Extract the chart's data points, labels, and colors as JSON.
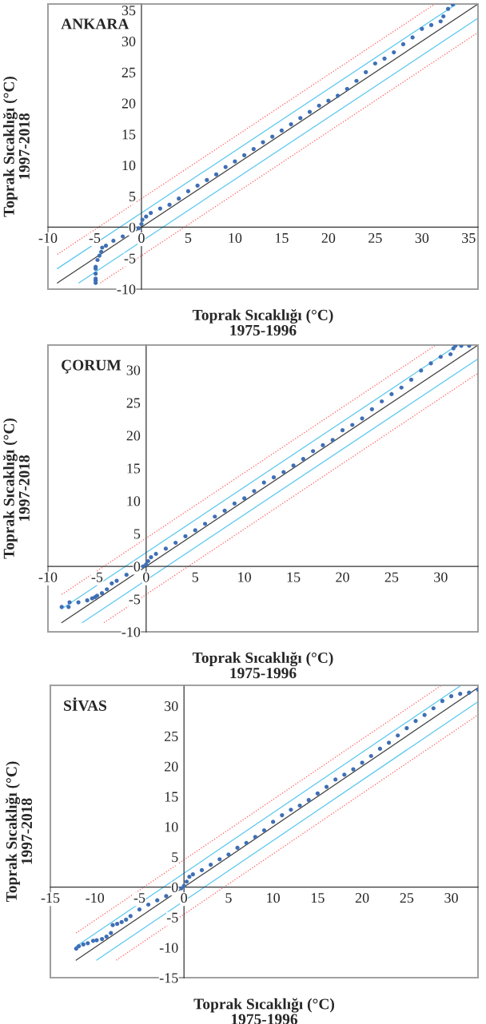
{
  "chart_data": [
    {
      "type": "scatter",
      "title": "ANKARA",
      "xlabel": "Toprak Sıcaklığı (°C)\n1975-1996",
      "ylabel": "Toprak Sıcaklığı (°C)\n1997-2018",
      "xlim": [
        -10,
        36
      ],
      "ylim": [
        -10,
        36
      ],
      "xticks": [
        -10,
        -5,
        0,
        5,
        10,
        15,
        20,
        25,
        30,
        35
      ],
      "yticks": [
        -10,
        -5,
        0,
        5,
        10,
        15,
        20,
        25,
        30,
        35
      ],
      "grid": false,
      "legend": false,
      "series": [
        {
          "color": "#3f6fb5",
          "marker": "circle",
          "x": [
            -4.9,
            -4.9,
            -4.9,
            -4.9,
            -4.9,
            -4.9,
            -4.7,
            -4.5,
            -4.3,
            -4.2,
            -3.8,
            -3,
            -2,
            -0.3,
            0,
            0.1,
            0.5,
            1,
            2,
            3,
            4,
            5,
            6,
            7,
            8,
            9,
            10,
            11,
            12,
            13,
            14,
            15,
            16,
            17,
            18,
            19,
            20,
            21,
            22,
            23,
            24,
            25,
            26,
            27,
            28,
            29,
            30,
            31,
            32,
            32.3,
            32.8,
            33.3
          ],
          "values": [
            -9.0,
            -8.6,
            -8.3,
            -7.5,
            -6.7,
            -6.4,
            -5.3,
            -4.6,
            -4.0,
            -3.3,
            -3.0,
            -2.2,
            -1.5,
            -0.2,
            0.5,
            1.2,
            1.7,
            2.3,
            3.0,
            3.6,
            4.6,
            5.8,
            6.7,
            7.6,
            8.5,
            9.7,
            10.6,
            11.6,
            12.6,
            13.7,
            14.6,
            15.6,
            16.6,
            17.6,
            18.6,
            19.6,
            20.4,
            21.2,
            22.3,
            23.6,
            25.0,
            26.4,
            27.2,
            28.2,
            29.5,
            30.6,
            32.0,
            32.6,
            33.2,
            34.0,
            35.2,
            35.9
          ]
        },
        {
          "type": "line",
          "color": "#404040",
          "line_style": "solid",
          "x": [
            -9,
            36
          ],
          "values": [
            -9,
            36
          ]
        },
        {
          "type": "line",
          "color": "#5ac8f0",
          "line_style": "solid",
          "x": [
            -9,
            33.7
          ],
          "values": [
            -6.7,
            36
          ]
        },
        {
          "type": "line",
          "color": "#5ac8f0",
          "line_style": "solid",
          "x": [
            -6.7,
            36
          ],
          "values": [
            -9,
            33.7
          ]
        },
        {
          "type": "line",
          "color": "#ff5a5a",
          "line_style": "dotted",
          "x": [
            -9,
            31.4
          ],
          "values": [
            -4.4,
            36
          ]
        },
        {
          "type": "line",
          "color": "#ff5a5a",
          "line_style": "dotted",
          "x": [
            -4.4,
            36
          ],
          "values": [
            -9,
            31.4
          ]
        }
      ]
    },
    {
      "type": "scatter",
      "title": "ÇORUM",
      "xlabel": "Toprak Sıcaklığı (°C)\n1975-1996",
      "ylabel": "Toprak Sıcaklığı (°C)\n1997-2018",
      "xlim": [
        -10,
        33.8
      ],
      "ylim": [
        -10,
        33.8
      ],
      "xticks": [
        -10,
        -5,
        0,
        5,
        10,
        15,
        20,
        25,
        30
      ],
      "yticks": [
        -10,
        -5,
        0,
        5,
        10,
        15,
        20,
        25,
        30
      ],
      "grid": false,
      "legend": false,
      "series": [
        {
          "color": "#3f6fb5",
          "marker": "circle",
          "x": [
            -8.6,
            -7.9,
            -7.8,
            -6.9,
            -6,
            -5.5,
            -5.2,
            -5,
            -4.5,
            -4,
            -3.5,
            -3,
            -2,
            -0.3,
            0,
            0.2,
            0.5,
            1,
            2,
            3,
            4,
            5,
            6,
            7,
            8,
            9,
            10,
            11,
            12,
            13,
            14,
            15,
            16,
            17,
            18,
            19,
            20,
            21,
            22,
            23,
            24,
            25,
            26,
            27,
            28,
            29,
            30,
            31,
            31.3,
            31.5,
            32.1,
            32.9
          ],
          "values": [
            -6.2,
            -6.2,
            -5.5,
            -5.5,
            -5.2,
            -4.9,
            -4.7,
            -4.5,
            -4.1,
            -3.5,
            -2.6,
            -2.2,
            -1.3,
            0,
            0.3,
            0.8,
            1.4,
            1.9,
            2.7,
            3.6,
            4.6,
            5.5,
            6.5,
            7.6,
            8.5,
            9.6,
            10.4,
            11.5,
            12.8,
            13.6,
            14.4,
            15.4,
            16.4,
            17.6,
            18.5,
            19.3,
            20.8,
            21.6,
            22.6,
            24.0,
            25.2,
            26.3,
            27.3,
            28.5,
            29.9,
            31.0,
            32.0,
            32.4,
            33.3,
            33.7,
            33.7,
            33.7
          ]
        },
        {
          "type": "line",
          "color": "#404040",
          "line_style": "solid",
          "x": [
            -8.6,
            33.8
          ],
          "values": [
            -8.6,
            33.8
          ]
        },
        {
          "type": "line",
          "color": "#5ac8f0",
          "line_style": "solid",
          "x": [
            -8.6,
            31.7
          ],
          "values": [
            -6.5,
            33.8
          ]
        },
        {
          "type": "line",
          "color": "#5ac8f0",
          "line_style": "solid",
          "x": [
            -6.5,
            33.8
          ],
          "values": [
            -8.6,
            31.7
          ]
        },
        {
          "type": "line",
          "color": "#ff5a5a",
          "line_style": "dotted",
          "x": [
            -8.6,
            29.5
          ],
          "values": [
            -4.3,
            33.8
          ]
        },
        {
          "type": "line",
          "color": "#ff5a5a",
          "line_style": "dotted",
          "x": [
            -4.3,
            33.8
          ],
          "values": [
            -8.6,
            29.5
          ]
        }
      ]
    },
    {
      "type": "scatter",
      "title": "SİVAS",
      "xlabel": "Toprak Sıcaklığı (°C)\n1975-1996",
      "ylabel": "Toprak Sıcaklığı (°C)\n1997-2018",
      "xlim": [
        -15,
        33
      ],
      "ylim": [
        -15,
        33.4
      ],
      "xticks": [
        -15,
        -10,
        -5,
        0,
        5,
        10,
        15,
        20,
        25,
        30
      ],
      "yticks": [
        -15,
        -10,
        -5,
        0,
        5,
        10,
        15,
        20,
        25,
        30
      ],
      "grid": false,
      "legend": false,
      "series": [
        {
          "color": "#3f6fb5",
          "marker": "circle",
          "x": [
            -12.1,
            -11.8,
            -11.3,
            -10.8,
            -10.2,
            -9.8,
            -9.2,
            -8.7,
            -8.2,
            -8,
            -7.5,
            -7,
            -6.5,
            -6,
            -5,
            -4,
            -3,
            -2,
            -0.3,
            0,
            0.3,
            0.6,
            1,
            2,
            3,
            4,
            5,
            6,
            7,
            8,
            9,
            10,
            11,
            12,
            13,
            14,
            15,
            16,
            17,
            18,
            19,
            20,
            21,
            22,
            23,
            24,
            25,
            26,
            27,
            28,
            29,
            30,
            31,
            32,
            33
          ],
          "values": [
            -10.2,
            -9.8,
            -9.5,
            -9.3,
            -8.9,
            -8.8,
            -8.6,
            -8.2,
            -7.6,
            -6.3,
            -6.1,
            -5.8,
            -5.4,
            -4.8,
            -3.7,
            -2.9,
            -2.2,
            -1.5,
            -0.2,
            0.2,
            0.9,
            1.7,
            2.1,
            2.8,
            3.7,
            4.6,
            5.4,
            6.5,
            7.3,
            8.3,
            9.4,
            10.8,
            11.9,
            12.8,
            13.5,
            14.4,
            15.5,
            16.6,
            17.8,
            18.6,
            19.5,
            20.6,
            21.7,
            22.9,
            23.9,
            25.1,
            26.3,
            27.5,
            28.5,
            29.6,
            30.8,
            31.6,
            32.0,
            32.2,
            32.7
          ]
        },
        {
          "type": "line",
          "color": "#404040",
          "line_style": "solid",
          "x": [
            -12.1,
            33
          ],
          "values": [
            -12.1,
            33
          ]
        },
        {
          "type": "line",
          "color": "#5ac8f0",
          "line_style": "solid",
          "x": [
            -12.1,
            31.1
          ],
          "values": [
            -9.8,
            33.4
          ]
        },
        {
          "type": "line",
          "color": "#5ac8f0",
          "line_style": "solid",
          "x": [
            -9.8,
            33
          ],
          "values": [
            -12.1,
            30.7
          ]
        },
        {
          "type": "line",
          "color": "#ff5a5a",
          "line_style": "dotted",
          "x": [
            -12.1,
            28.9
          ],
          "values": [
            -7.6,
            33.4
          ]
        },
        {
          "type": "line",
          "color": "#ff5a5a",
          "line_style": "dotted",
          "x": [
            -7.6,
            33
          ],
          "values": [
            -12.1,
            28.5
          ]
        }
      ]
    }
  ]
}
